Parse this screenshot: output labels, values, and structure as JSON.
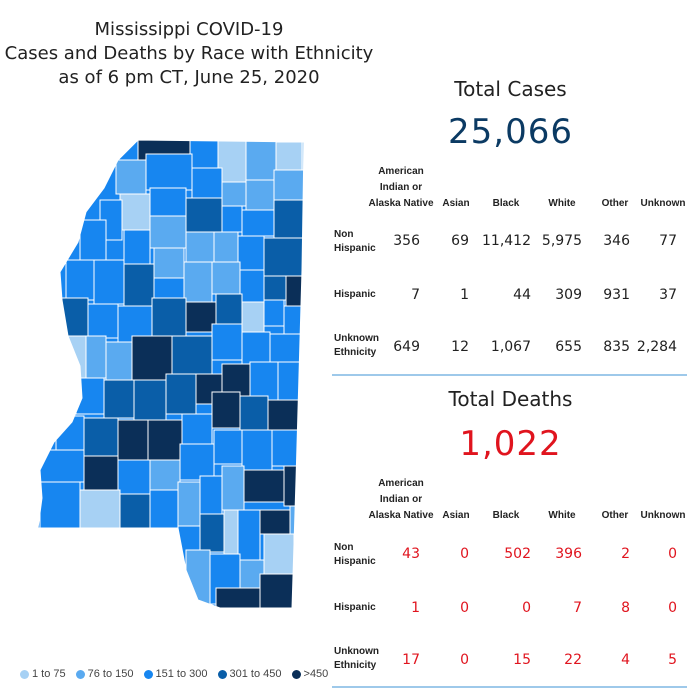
{
  "title": {
    "line1": "Mississippi COVID-19",
    "line2": "Cases and Deaths by Race with Ethnicity",
    "line3": "as of 6 pm CT, June 25, 2020"
  },
  "colors": {
    "bin1": "#a7d1f4",
    "bin2": "#5aaaf0",
    "bin3": "#1786f0",
    "bin4": "#0a5ea8",
    "bin5": "#0b2f58",
    "cases_total": "#0b3a63",
    "deaths": "#e0141e",
    "divider": "#9ec9ea"
  },
  "legend": [
    {
      "label": "1 to 75",
      "color": "#a7d1f4"
    },
    {
      "label": "76 to 150",
      "color": "#5aaaf0"
    },
    {
      "label": "151 to 300",
      "color": "#1786f0"
    },
    {
      "label": "301 to 450",
      "color": "#0a5ea8"
    },
    {
      "label": ">450",
      "color": "#0b2f58"
    }
  ],
  "columns": {
    "ai_line1": "American",
    "ai_line2": "Indian or",
    "ai_line3": "Alaska Native",
    "asian": "Asian",
    "black": "Black",
    "white": "White",
    "other": "Other",
    "unknown": "Unknown"
  },
  "rows": {
    "nonhisp_line1": "Non",
    "nonhisp_line2": "Hispanic",
    "hisp": "Hispanic",
    "unk_line1": "Unknown",
    "unk_line2": "Ethnicity"
  },
  "cases": {
    "title": "Total Cases",
    "total": "25,066",
    "non_hispanic": [
      "356",
      "69",
      "11,412",
      "5,975",
      "346",
      "77"
    ],
    "hispanic": [
      "7",
      "1",
      "44",
      "309",
      "931",
      "37"
    ],
    "unknown_ethnicity": [
      "649",
      "12",
      "1,067",
      "655",
      "835",
      "2,284"
    ]
  },
  "deaths": {
    "title": "Total Deaths",
    "total": "1,022",
    "non_hispanic": [
      "43",
      "0",
      "502",
      "396",
      "2",
      "0"
    ],
    "hispanic": [
      "1",
      "0",
      "0",
      "7",
      "8",
      "0"
    ],
    "unknown_ethnicity": [
      "17",
      "0",
      "15",
      "22",
      "4",
      "5"
    ]
  }
}
